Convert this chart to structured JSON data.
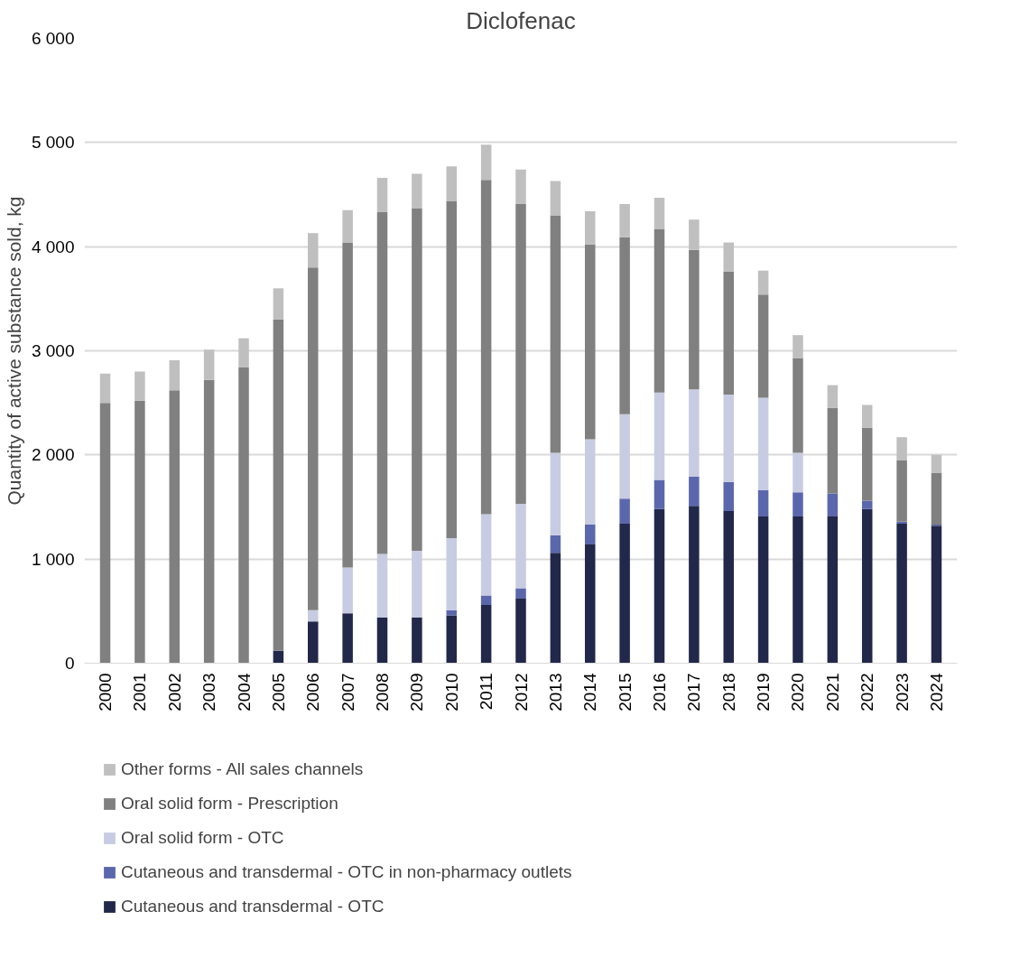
{
  "chart_data": {
    "type": "bar",
    "title": "Diclofenac",
    "ylabel": "Quantity of active substance sold, kg",
    "categories": [
      "2000",
      "2001",
      "2002",
      "2003",
      "2004",
      "2005",
      "2006",
      "2007",
      "2008",
      "2009",
      "2010",
      "2011",
      "2012",
      "2013",
      "2014",
      "2015",
      "2016",
      "2017",
      "2018",
      "2019",
      "2020",
      "2021",
      "2022",
      "2023",
      "2024"
    ],
    "stacked": true,
    "series": [
      {
        "name": "Cutaneous and transdermal - OTC",
        "color": "#222849",
        "values": [
          0,
          0,
          0,
          0,
          0,
          120,
          400,
          480,
          440,
          440,
          460,
          560,
          620,
          1060,
          1140,
          1340,
          1480,
          1510,
          1460,
          1410,
          1410,
          1410,
          1480,
          1340,
          1320
        ]
      },
      {
        "name": "Cutaneous and transdermal - OTC in non-pharmacy outlets",
        "color": "#5b67ad",
        "values": [
          0,
          0,
          0,
          0,
          0,
          0,
          0,
          0,
          0,
          0,
          50,
          90,
          100,
          170,
          190,
          240,
          280,
          280,
          280,
          250,
          230,
          220,
          80,
          20,
          10
        ]
      },
      {
        "name": "Oral solid form - OTC",
        "color": "#c8cce2",
        "values": [
          0,
          0,
          0,
          0,
          0,
          0,
          110,
          440,
          610,
          640,
          690,
          780,
          810,
          790,
          820,
          810,
          840,
          840,
          840,
          890,
          380,
          0,
          0,
          0,
          0
        ]
      },
      {
        "name": "Oral solid form - Prescription",
        "color": "#808080",
        "values": [
          2500,
          2520,
          2620,
          2720,
          2840,
          3180,
          3290,
          3120,
          3280,
          3290,
          3240,
          3210,
          2880,
          2280,
          1870,
          1700,
          1570,
          1340,
          1180,
          990,
          910,
          820,
          700,
          590,
          500
        ]
      },
      {
        "name": "Other forms - All sales channels",
        "color": "#bfbfbf",
        "values": [
          280,
          280,
          290,
          290,
          280,
          300,
          330,
          310,
          330,
          330,
          330,
          340,
          330,
          330,
          320,
          320,
          300,
          290,
          280,
          230,
          220,
          220,
          220,
          220,
          170
        ]
      }
    ],
    "ylim": [
      0,
      6000
    ],
    "yticks": [
      0,
      {
        "value": 1000,
        "label": "1 000"
      },
      {
        "value": 2000,
        "label": "2 000"
      },
      {
        "value": 3000,
        "label": "3 000"
      },
      {
        "value": 4000,
        "label": "4 000"
      },
      {
        "value": 5000,
        "label": "5 000"
      },
      {
        "value": 6000,
        "label": "6 000"
      }
    ],
    "grid": "y",
    "legend": "bottom"
  }
}
